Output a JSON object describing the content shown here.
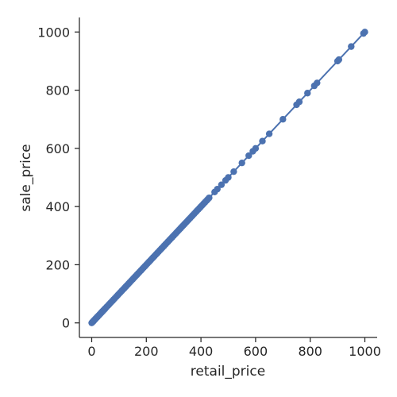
{
  "chart_data": {
    "type": "scatter",
    "xlabel": "retail_price",
    "ylabel": "sale_price",
    "xlim": [
      -45,
      1045
    ],
    "ylim": [
      -50,
      1050
    ],
    "xticks": [
      0,
      200,
      400,
      600,
      800,
      1000
    ],
    "yticks": [
      0,
      200,
      400,
      600,
      800,
      1000
    ],
    "grid": false,
    "point_color": "#4c72b0",
    "line_color": "#4c72b0",
    "regression_line": {
      "x": [
        0,
        1000
      ],
      "y": [
        0,
        1000
      ]
    },
    "series": [
      {
        "points": [
          [
            0,
            0
          ],
          [
            2,
            2
          ],
          [
            4,
            4
          ],
          [
            5,
            5
          ],
          [
            7,
            7
          ],
          [
            9,
            9
          ],
          [
            10,
            10
          ],
          [
            12,
            12
          ],
          [
            14,
            14
          ],
          [
            15,
            15
          ],
          [
            18,
            18
          ],
          [
            20,
            20
          ],
          [
            22,
            22
          ],
          [
            25,
            25
          ],
          [
            28,
            28
          ],
          [
            30,
            30
          ],
          [
            33,
            33
          ],
          [
            35,
            35
          ],
          [
            38,
            38
          ],
          [
            40,
            40
          ],
          [
            42,
            42
          ],
          [
            45,
            45
          ],
          [
            48,
            48
          ],
          [
            50,
            50
          ],
          [
            55,
            55
          ],
          [
            60,
            60
          ],
          [
            65,
            65
          ],
          [
            70,
            70
          ],
          [
            75,
            75
          ],
          [
            80,
            80
          ],
          [
            85,
            85
          ],
          [
            90,
            90
          ],
          [
            95,
            95
          ],
          [
            100,
            100
          ],
          [
            105,
            105
          ],
          [
            110,
            110
          ],
          [
            115,
            115
          ],
          [
            120,
            120
          ],
          [
            125,
            125
          ],
          [
            130,
            130
          ],
          [
            135,
            135
          ],
          [
            140,
            140
          ],
          [
            145,
            145
          ],
          [
            150,
            150
          ],
          [
            155,
            155
          ],
          [
            160,
            160
          ],
          [
            165,
            165
          ],
          [
            170,
            170
          ],
          [
            175,
            175
          ],
          [
            180,
            180
          ],
          [
            185,
            185
          ],
          [
            190,
            190
          ],
          [
            195,
            195
          ],
          [
            200,
            200
          ],
          [
            205,
            205
          ],
          [
            210,
            210
          ],
          [
            215,
            215
          ],
          [
            220,
            220
          ],
          [
            225,
            225
          ],
          [
            230,
            230
          ],
          [
            235,
            235
          ],
          [
            240,
            240
          ],
          [
            245,
            245
          ],
          [
            250,
            250
          ],
          [
            255,
            255
          ],
          [
            260,
            260
          ],
          [
            265,
            265
          ],
          [
            270,
            270
          ],
          [
            275,
            275
          ],
          [
            280,
            280
          ],
          [
            285,
            285
          ],
          [
            290,
            290
          ],
          [
            295,
            295
          ],
          [
            300,
            300
          ],
          [
            305,
            305
          ],
          [
            310,
            310
          ],
          [
            315,
            315
          ],
          [
            320,
            320
          ],
          [
            325,
            325
          ],
          [
            330,
            330
          ],
          [
            335,
            335
          ],
          [
            340,
            340
          ],
          [
            345,
            345
          ],
          [
            350,
            350
          ],
          [
            355,
            355
          ],
          [
            360,
            360
          ],
          [
            365,
            365
          ],
          [
            370,
            370
          ],
          [
            375,
            375
          ],
          [
            380,
            380
          ],
          [
            385,
            385
          ],
          [
            390,
            390
          ],
          [
            395,
            395
          ],
          [
            400,
            400
          ],
          [
            405,
            405
          ],
          [
            410,
            410
          ],
          [
            415,
            415
          ],
          [
            420,
            420
          ],
          [
            425,
            425
          ],
          [
            430,
            430
          ],
          [
            450,
            450
          ],
          [
            460,
            460
          ],
          [
            475,
            475
          ],
          [
            490,
            490
          ],
          [
            500,
            500
          ],
          [
            520,
            520
          ],
          [
            550,
            550
          ],
          [
            575,
            575
          ],
          [
            590,
            590
          ],
          [
            600,
            600
          ],
          [
            625,
            625
          ],
          [
            650,
            650
          ],
          [
            700,
            700
          ],
          [
            750,
            750
          ],
          [
            760,
            760
          ],
          [
            790,
            790
          ],
          [
            815,
            815
          ],
          [
            825,
            825
          ],
          [
            900,
            900
          ],
          [
            905,
            905
          ],
          [
            950,
            950
          ],
          [
            995,
            995
          ],
          [
            1000,
            1000
          ]
        ]
      }
    ]
  }
}
